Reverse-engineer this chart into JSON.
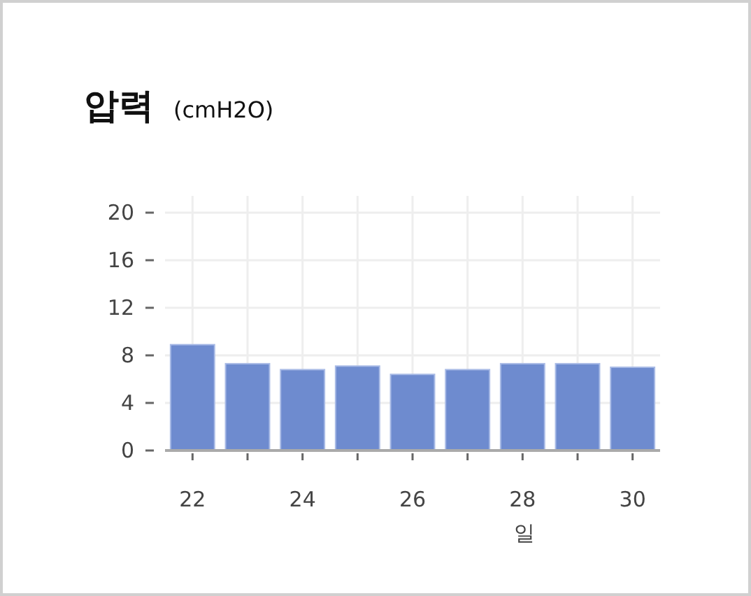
{
  "chart_data": {
    "type": "bar",
    "title": "압력",
    "ylabel": "(cmH2O)",
    "xlabel": "일",
    "x": [
      22,
      23,
      24,
      25,
      26,
      27,
      28,
      29,
      30
    ],
    "values": [
      8.9,
      7.3,
      6.8,
      7.1,
      6.4,
      6.8,
      7.3,
      7.3,
      7.0
    ],
    "color": "#6e8bcf",
    "xlim": [
      21.5,
      30.5
    ],
    "xticks": [
      22,
      {
        "value": 23,
        "label": null
      },
      24,
      {
        "value": 25,
        "label": null
      },
      26,
      {
        "value": 27,
        "label": null
      },
      28,
      {
        "value": 29,
        "label": null
      },
      30
    ],
    "ylim": [
      0,
      20
    ],
    "yticks": [
      0,
      4,
      8,
      12,
      16,
      20
    ],
    "grid": true
  }
}
